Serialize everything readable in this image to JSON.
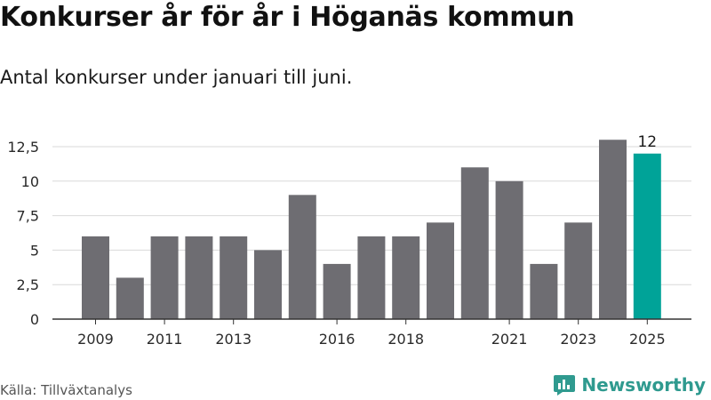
{
  "title": "Konkurser år för år i Höganäs kommun",
  "subtitle": "Antal konkurser under januari till juni.",
  "source": "Källa: Tillväxtanalys",
  "logo": {
    "text": "Newsworthy",
    "icon": "newsworthy-chart-bubble-icon"
  },
  "colors": {
    "bar": "#6e6d72",
    "highlight": "#00a398",
    "grid": "#d9d9d9",
    "axis": "#333333"
  },
  "chart_data": {
    "type": "bar",
    "title": "Konkurser år för år i Höganäs kommun",
    "subtitle": "Antal konkurser under januari till juni.",
    "categories": [
      "2009",
      "2010",
      "2011",
      "2012",
      "2013",
      "2014",
      "2015",
      "2016",
      "2017",
      "2018",
      "2019",
      "2020",
      "2021",
      "2022",
      "2023",
      "2024",
      "2025"
    ],
    "values": [
      6,
      3,
      6,
      6,
      6,
      5,
      9,
      4,
      6,
      6,
      7,
      11,
      10,
      4,
      7,
      13,
      12
    ],
    "x_tick_labels": [
      "2009",
      "2011",
      "2013",
      "2016",
      "2018",
      "2021",
      "2023",
      "2025"
    ],
    "y_ticks": [
      0,
      2.5,
      5,
      7.5,
      10,
      12.5
    ],
    "y_tick_labels": [
      "0",
      "2,5",
      "5",
      "7,5",
      "10",
      "12,5"
    ],
    "ylim": [
      0,
      13
    ],
    "highlight_category": "2025",
    "data_labels": [
      {
        "category": "2025",
        "text": "12"
      }
    ],
    "grid": true,
    "xlabel": "",
    "ylabel": ""
  }
}
